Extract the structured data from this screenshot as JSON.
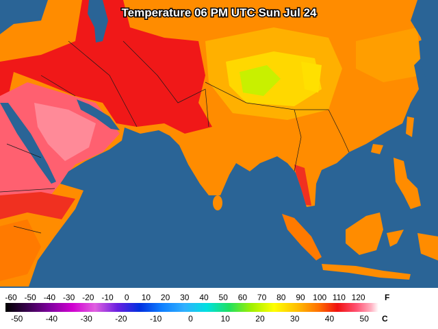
{
  "title": "Temperature 06 PM UTC Sun Jul 24",
  "legend": {
    "fahrenheit": {
      "unit": "F",
      "labels": [
        -60,
        -50,
        -40,
        -30,
        -20,
        -10,
        0,
        10,
        20,
        30,
        40,
        50,
        60,
        70,
        80,
        90,
        100,
        110,
        120
      ]
    },
    "celsius": {
      "unit": "C",
      "labels": [
        -50,
        -40,
        -30,
        -20,
        -10,
        0,
        10,
        20,
        30,
        40,
        50
      ]
    }
  }
}
